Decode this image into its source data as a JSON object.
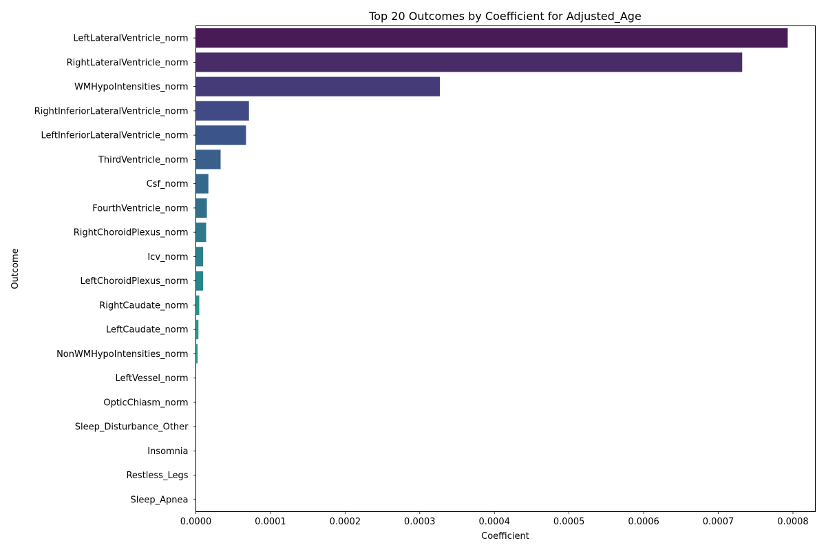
{
  "chart_data": {
    "type": "bar",
    "orientation": "horizontal",
    "title": "Top 20 Outcomes by Coefficient for Adjusted_Age",
    "xlabel": "Coefficient",
    "ylabel": "Outcome",
    "xlim": [
      0,
      0.00083
    ],
    "xticks": [
      "0.0000",
      "0.0001",
      "0.0002",
      "0.0003",
      "0.0004",
      "0.0005",
      "0.0006",
      "0.0007",
      "0.0008"
    ],
    "grid": false,
    "legend": "none",
    "colormap": "viridis",
    "categories": [
      "LeftLateralVentricle_norm",
      "RightLateralVentricle_norm",
      "WMHypoIntensities_norm",
      "RightInferiorLateralVentricle_norm",
      "LeftInferiorLateralVentricle_norm",
      "ThirdVentricle_norm",
      "Csf_norm",
      "FourthVentricle_norm",
      "RightChoroidPlexus_norm",
      "Icv_norm",
      "LeftChoroidPlexus_norm",
      "RightCaudate_norm",
      "LeftCaudate_norm",
      "NonWMHypoIntensities_norm",
      "LeftVessel_norm",
      "OpticChiasm_norm",
      "Sleep_Disturbance_Other",
      "Insomnia",
      "Restless_Legs",
      "Sleep_Apnea"
    ],
    "values": [
      0.000793,
      0.000732,
      0.000327,
      7.12e-05,
      6.72e-05,
      3.32e-05,
      1.68e-05,
      1.48e-05,
      1.38e-05,
      9.8e-06,
      9.7e-06,
      4.6e-06,
      3.5e-06,
      2.4e-06,
      3e-07,
      2e-07,
      1e-07,
      1e-07,
      1e-07,
      1e-07
    ],
    "colors": [
      "#481a56",
      "#482c68",
      "#453b78",
      "#414a84",
      "#3b5489",
      "#3a5f8b",
      "#33698b",
      "#316f8b",
      "#2d788b",
      "#2c7f8b",
      "#28858a",
      "#29908a",
      "#2a9589",
      "#2a9b88",
      "#30a384",
      "#36a97f",
      "#41b17b",
      "#4cb777",
      "#57be72",
      "#62c36c"
    ]
  }
}
